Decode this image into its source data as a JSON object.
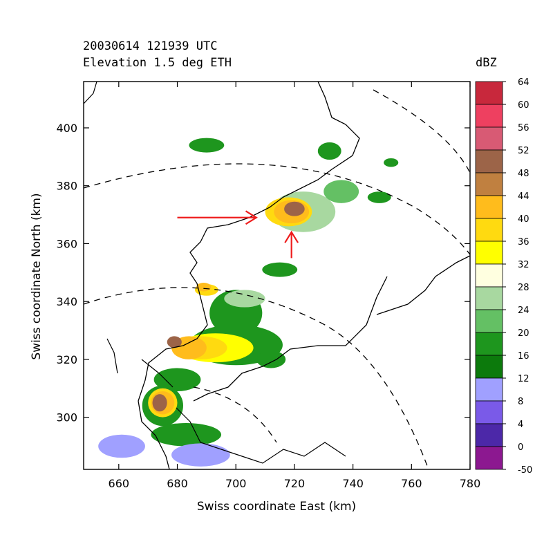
{
  "chart_data": {
    "type": "heatmap",
    "title_line1": "20030614 121939 UTC",
    "title_line2": "Elevation  1.5 deg ETH",
    "xlabel": "Swiss coordinate East (km)",
    "ylabel": "Swiss coordinate North (km)",
    "xlim": [
      648,
      780
    ],
    "ylim": [
      282,
      416
    ],
    "x_ticks": [
      660,
      680,
      700,
      720,
      740,
      760,
      780
    ],
    "y_ticks": [
      300,
      320,
      340,
      360,
      380,
      400
    ],
    "colorbar": {
      "unit": "dBZ",
      "levels": [
        "64",
        "60",
        "56",
        "52",
        "48",
        "44",
        "40",
        "36",
        "32",
        "28",
        "24",
        "20",
        "16",
        "12",
        "8",
        "4",
        "0",
        "-50"
      ],
      "colors": [
        "#c8283c",
        "#ee4060",
        "#d85a74",
        "#9c6448",
        "#c08040",
        "#ffbc1c",
        "#ffda10",
        "#ffff00",
        "#ffffe0",
        "#a8d8a0",
        "#64c064",
        "#1e961e",
        "#0c7a0c",
        "#a0a0ff",
        "#7a5ae8",
        "#4c28a8",
        "#8c1890"
      ]
    },
    "annotations": [
      {
        "type": "arrow",
        "from": [
          680,
          369
        ],
        "to": [
          707,
          369
        ],
        "color": "#ee1c1c"
      },
      {
        "type": "arrow",
        "from": [
          719,
          355
        ],
        "to": [
          719,
          364
        ],
        "color": "#ee1c1c"
      }
    ],
    "cells": [
      {
        "x": 723,
        "y": 371,
        "rx": 11,
        "ry": 7,
        "level": 24
      },
      {
        "x": 736,
        "y": 378,
        "rx": 6,
        "ry": 4,
        "level": 20
      },
      {
        "x": 718,
        "y": 371,
        "rx": 8,
        "ry": 5,
        "level": 36
      },
      {
        "x": 719,
        "y": 371,
        "rx": 6,
        "ry": 4,
        "level": 40
      },
      {
        "x": 720,
        "y": 372,
        "rx": 3.5,
        "ry": 2.5,
        "level": 48
      },
      {
        "x": 732,
        "y": 392,
        "rx": 4,
        "ry": 3,
        "level": 16
      },
      {
        "x": 690,
        "y": 394,
        "rx": 6,
        "ry": 2.5,
        "level": 16
      },
      {
        "x": 749,
        "y": 376,
        "rx": 4,
        "ry": 2,
        "level": 16
      },
      {
        "x": 753,
        "y": 388,
        "rx": 2.5,
        "ry": 1.5,
        "level": 16
      },
      {
        "x": 715,
        "y": 351,
        "rx": 6,
        "ry": 2.5,
        "level": 16
      },
      {
        "x": 700,
        "y": 336,
        "rx": 9,
        "ry": 8,
        "level": 16
      },
      {
        "x": 703,
        "y": 341,
        "rx": 7,
        "ry": 3,
        "level": 24
      },
      {
        "x": 690,
        "y": 344,
        "rx": 4,
        "ry": 2,
        "level": 36
      },
      {
        "x": 689,
        "y": 345,
        "rx": 2.5,
        "ry": 1.5,
        "level": 40
      },
      {
        "x": 700,
        "y": 325,
        "rx": 16,
        "ry": 7,
        "level": 16
      },
      {
        "x": 712,
        "y": 320,
        "rx": 5,
        "ry": 3,
        "level": 16
      },
      {
        "x": 693,
        "y": 324,
        "rx": 13,
        "ry": 5,
        "level": 32
      },
      {
        "x": 688,
        "y": 324,
        "rx": 9,
        "ry": 4,
        "level": 36
      },
      {
        "x": 684,
        "y": 324,
        "rx": 6,
        "ry": 4,
        "level": 40
      },
      {
        "x": 679,
        "y": 326,
        "rx": 2.5,
        "ry": 2,
        "level": 48
      },
      {
        "x": 680,
        "y": 313,
        "rx": 8,
        "ry": 4,
        "level": 16
      },
      {
        "x": 675,
        "y": 304,
        "rx": 7,
        "ry": 7,
        "level": 16
      },
      {
        "x": 675,
        "y": 305,
        "rx": 5,
        "ry": 5,
        "level": 36
      },
      {
        "x": 675,
        "y": 305,
        "rx": 4,
        "ry": 4,
        "level": 40
      },
      {
        "x": 674,
        "y": 305,
        "rx": 2.5,
        "ry": 3,
        "level": 48
      },
      {
        "x": 683,
        "y": 294,
        "rx": 12,
        "ry": 4,
        "level": 16
      },
      {
        "x": 661,
        "y": 290,
        "rx": 8,
        "ry": 4,
        "level": 8
      },
      {
        "x": 688,
        "y": 287,
        "rx": 10,
        "ry": 4,
        "level": 8
      }
    ]
  }
}
